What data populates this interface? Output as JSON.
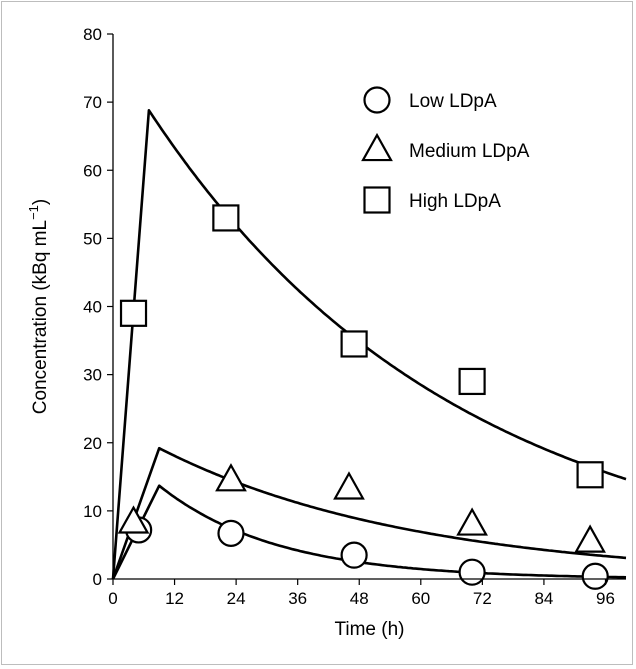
{
  "chart_data": {
    "type": "scatter",
    "title": "",
    "xlabel": "Time (h)",
    "ylabel_main": "Concentration (kBq mL",
    "ylabel_sup": "−1",
    "ylabel_close": ")",
    "xlim": [
      0,
      100
    ],
    "ylim": [
      0,
      80
    ],
    "xticks": [
      0,
      12,
      24,
      36,
      48,
      60,
      72,
      84,
      96
    ],
    "yticks": [
      0,
      10,
      20,
      30,
      40,
      50,
      60,
      70,
      80
    ],
    "grid": false,
    "legend_position": "top-right",
    "series": [
      {
        "name": "Low LDpA",
        "marker": "circle",
        "points": [
          [
            5,
            7.2
          ],
          [
            23,
            6.7
          ],
          [
            47,
            3.5
          ],
          [
            70,
            1.0
          ],
          [
            94,
            0.4
          ]
        ],
        "curve": {
          "peak_x": 9,
          "peak_y": 13.7,
          "half_life_h": 15.8,
          "end_x": 100
        }
      },
      {
        "name": "Medium LDpA",
        "marker": "triangle",
        "points": [
          [
            4,
            8.3
          ],
          [
            23,
            14.5
          ],
          [
            46,
            13.3
          ],
          [
            70,
            8.0
          ],
          [
            93,
            5.5
          ]
        ],
        "curve": {
          "peak_x": 9,
          "peak_y": 19.2,
          "half_life_h": 34.6,
          "end_x": 100
        }
      },
      {
        "name": "High LDpA",
        "marker": "square",
        "points": [
          [
            4,
            39
          ],
          [
            22,
            53
          ],
          [
            47,
            34.5
          ],
          [
            70,
            29
          ],
          [
            93,
            15.3
          ]
        ],
        "curve": {
          "peak_x": 7,
          "peak_y": 68.8,
          "half_life_h": 41.7,
          "end_x": 100
        }
      }
    ]
  }
}
